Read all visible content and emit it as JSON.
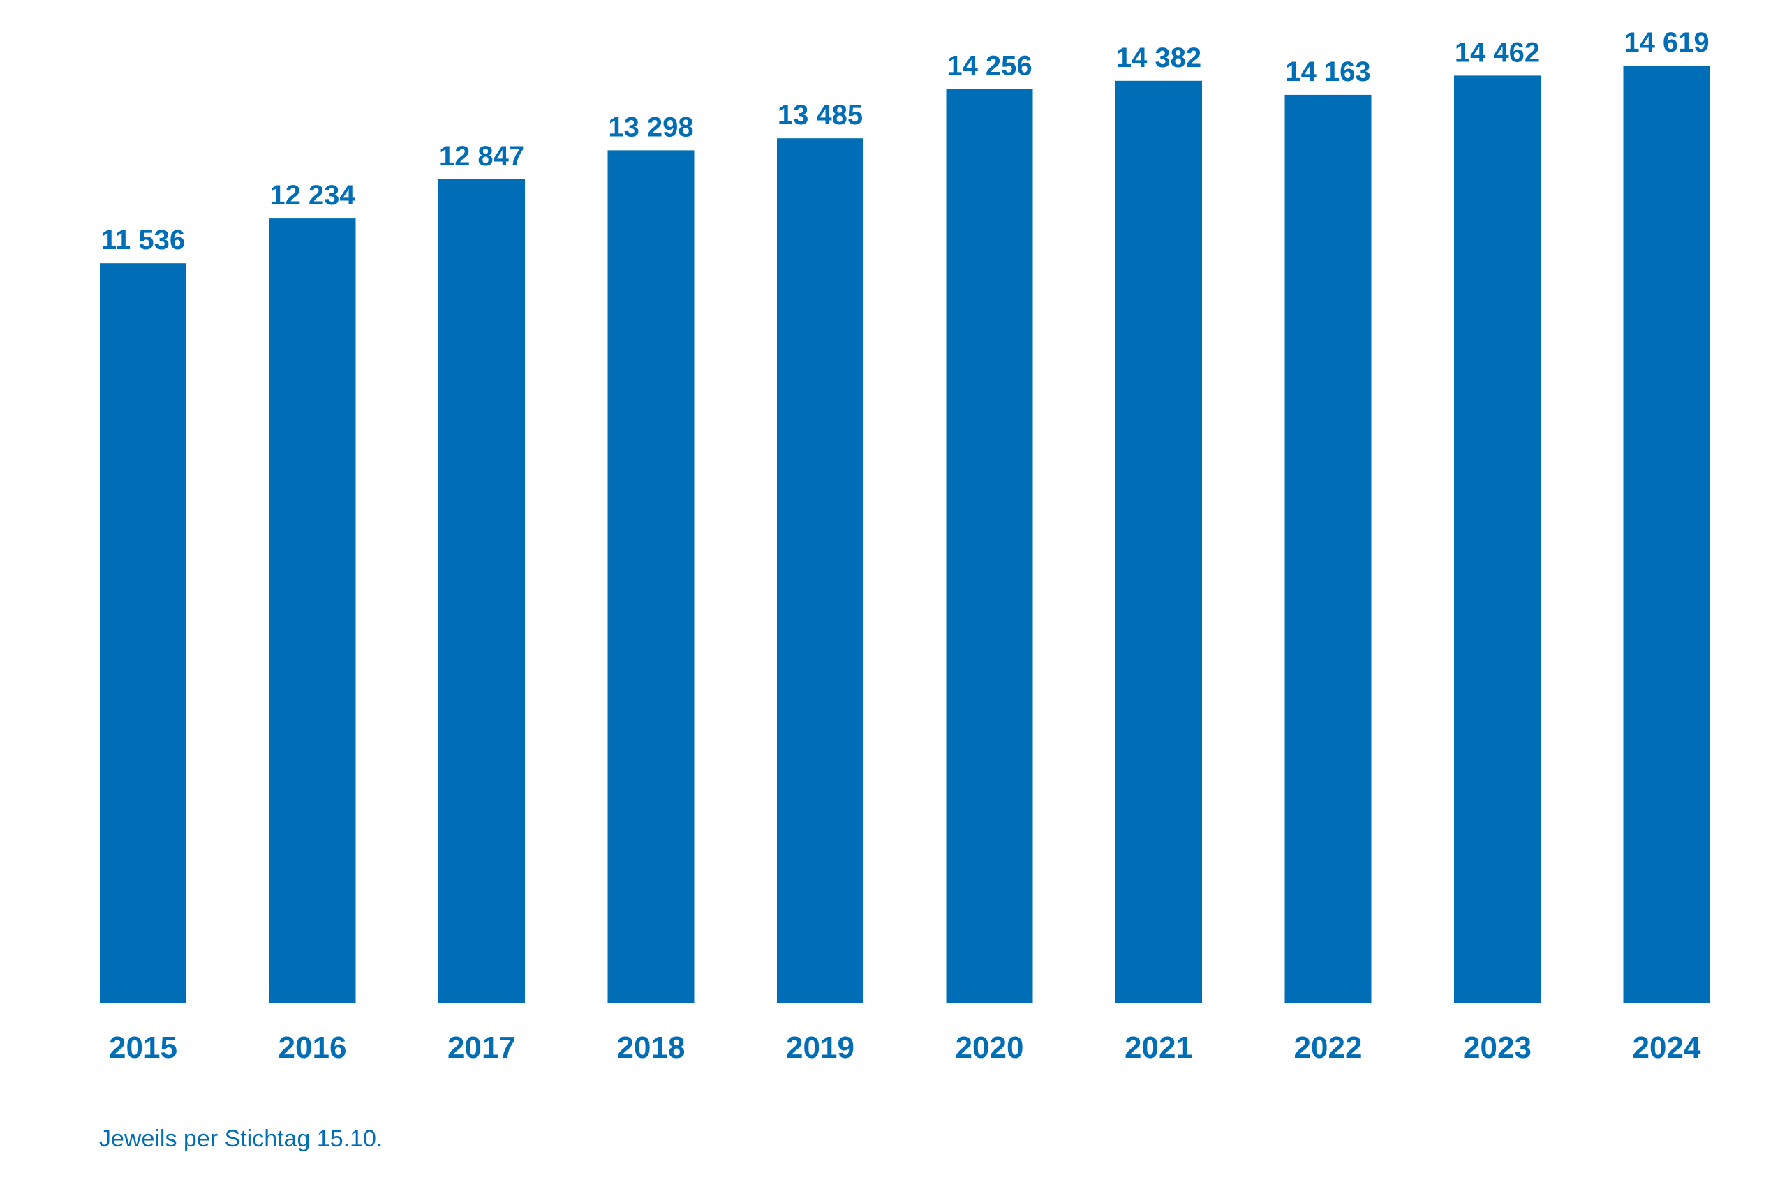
{
  "colors": {
    "bar": "#006EB7",
    "text": "#006EB7"
  },
  "chart_data": {
    "type": "bar",
    "title": "",
    "xlabel": "",
    "ylabel": "",
    "categories": [
      "2015",
      "2016",
      "2017",
      "2018",
      "2019",
      "2020",
      "2021",
      "2022",
      "2023",
      "2024"
    ],
    "values": [
      11536,
      12234,
      12847,
      13298,
      13485,
      14256,
      14382,
      14163,
      14462,
      14619
    ],
    "value_labels": [
      "11 536",
      "12 234",
      "12 847",
      "13 298",
      "13 485",
      "14 256",
      "14 382",
      "14 163",
      "14 462",
      "14 619"
    ],
    "ylim": [
      0,
      15000
    ],
    "grid": false,
    "legend": "none"
  },
  "note": "Jeweils per Stichtag 15.10."
}
